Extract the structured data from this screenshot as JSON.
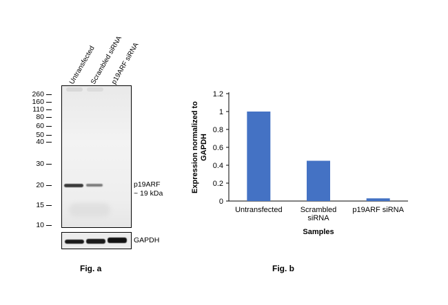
{
  "figure_a": {
    "lane_labels": [
      "Untransfected",
      "Scrambled siRNA",
      "p19ARF siRNA"
    ],
    "mw_markers": [
      "260",
      "160",
      "110",
      "80",
      "60",
      "50",
      "40",
      "30",
      "20",
      "15",
      "10"
    ],
    "band_label_line1": "p19ARF",
    "band_label_line2": "~ 19 kDa",
    "loading_control_label": "GAPDH",
    "caption": "Fig. a"
  },
  "figure_b": {
    "caption": "Fig. b"
  },
  "chart_data": {
    "type": "bar",
    "categories": [
      "Untransfected",
      "Scrambled siRNA",
      "p19ARF siRNA"
    ],
    "category_lines": [
      [
        "Untransfected"
      ],
      [
        "Scrambled",
        "siRNA"
      ],
      [
        "p19ARF siRNA"
      ]
    ],
    "values": [
      1.0,
      0.45,
      0.03
    ],
    "xlabel": "Samples",
    "ylabel": "Expression normalized to GAPDH",
    "ylabel_lines": [
      "Expression normalized to",
      "GAPDH"
    ],
    "ylim": [
      0,
      1.2
    ],
    "yticks": [
      "0",
      "0.2",
      "0.4",
      "0.6",
      "0.8",
      "1",
      "1.2"
    ],
    "ytick_values": [
      0,
      0.2,
      0.4,
      0.6,
      0.8,
      1.0,
      1.2
    ],
    "bar_color": "#4472C4",
    "grid": false
  }
}
